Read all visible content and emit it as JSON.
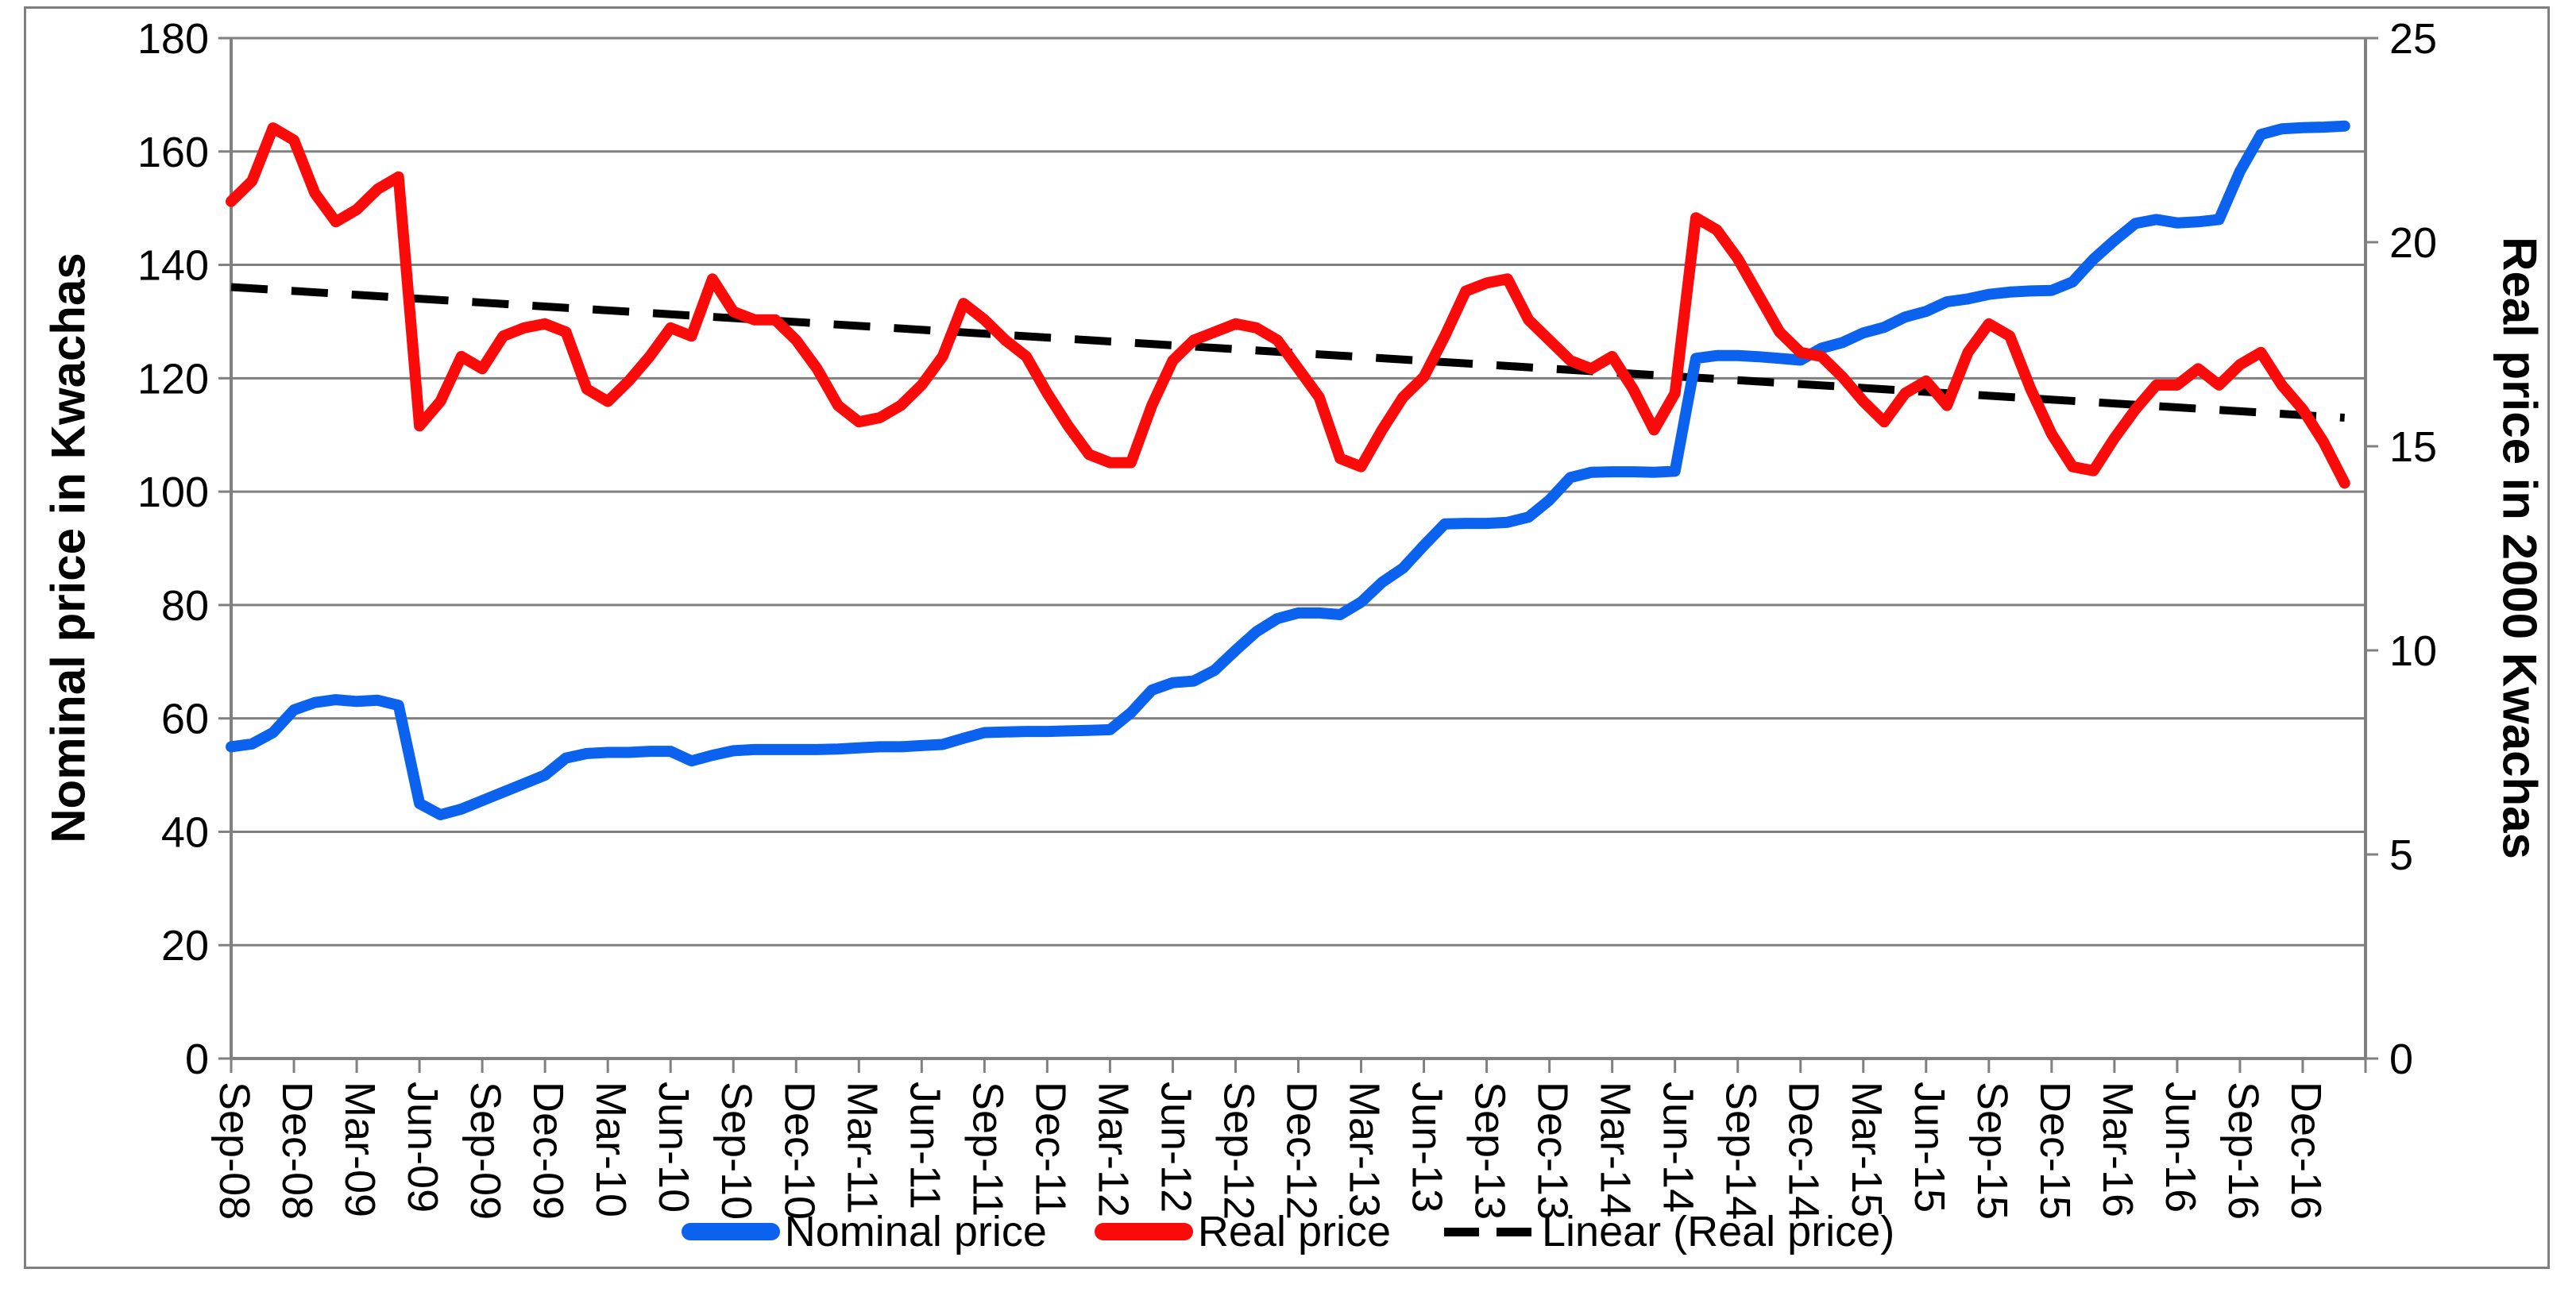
{
  "chart_data": {
    "type": "line",
    "title": "",
    "x_tick_labels": [
      "Sep-08",
      "Dec-08",
      "Mar-09",
      "Jun-09",
      "Sep-09",
      "Dec-09",
      "Mar-10",
      "Jun-10",
      "Sep-10",
      "Dec-10",
      "Mar-11",
      "Jun-11",
      "Sep-11",
      "Dec-11",
      "Mar-12",
      "Jun-12",
      "Sep-12",
      "Dec-12",
      "Mar-13",
      "Jun-13",
      "Sep-13",
      "Dec-13",
      "Mar-14",
      "Jun-14",
      "Sep-14",
      "Dec-14",
      "Mar-15",
      "Jun-15",
      "Sep-15",
      "Dec-15",
      "Mar-16",
      "Jun-16",
      "Sep-16",
      "Dec-16"
    ],
    "x": [
      "Sep-08",
      "Oct-08",
      "Nov-08",
      "Dec-08",
      "Jan-09",
      "Feb-09",
      "Mar-09",
      "Apr-09",
      "May-09",
      "Jun-09",
      "Jul-09",
      "Aug-09",
      "Sep-09",
      "Oct-09",
      "Nov-09",
      "Dec-09",
      "Jan-10",
      "Feb-10",
      "Mar-10",
      "Apr-10",
      "May-10",
      "Jun-10",
      "Jul-10",
      "Aug-10",
      "Sep-10",
      "Oct-10",
      "Nov-10",
      "Dec-10",
      "Jan-11",
      "Feb-11",
      "Mar-11",
      "Apr-11",
      "May-11",
      "Jun-11",
      "Jul-11",
      "Aug-11",
      "Sep-11",
      "Oct-11",
      "Nov-11",
      "Dec-11",
      "Jan-12",
      "Feb-12",
      "Mar-12",
      "Apr-12",
      "May-12",
      "Jun-12",
      "Jul-12",
      "Aug-12",
      "Sep-12",
      "Oct-12",
      "Nov-12",
      "Dec-12",
      "Jan-13",
      "Feb-13",
      "Mar-13",
      "Apr-13",
      "May-13",
      "Jun-13",
      "Jul-13",
      "Aug-13",
      "Sep-13",
      "Oct-13",
      "Nov-13",
      "Dec-13",
      "Jan-14",
      "Feb-14",
      "Mar-14",
      "Apr-14",
      "May-14",
      "Jun-14",
      "Jul-14",
      "Aug-14",
      "Sep-14",
      "Oct-14",
      "Nov-14",
      "Dec-14",
      "Jan-15",
      "Feb-15",
      "Mar-15",
      "Apr-15",
      "May-15",
      "Jun-15",
      "Jul-15",
      "Aug-15",
      "Sep-15",
      "Oct-15",
      "Nov-15",
      "Dec-15",
      "Jan-16",
      "Feb-16",
      "Mar-16",
      "Apr-16",
      "May-16",
      "Jun-16",
      "Jul-16",
      "Aug-16",
      "Sep-16",
      "Oct-16",
      "Nov-16",
      "Dec-16",
      "Jan-17",
      "Feb-17"
    ],
    "series": [
      {
        "name": "Nominal price",
        "axis": "left",
        "color": "#0a62ef",
        "values": [
          55,
          55.5,
          57.5,
          61.5,
          62.8,
          63.3,
          63,
          63.2,
          62.3,
          45,
          43,
          44,
          45.5,
          47,
          48.5,
          50,
          53,
          53.8,
          54,
          54,
          54.2,
          54.2,
          52.5,
          53.5,
          54.3,
          54.5,
          54.5,
          54.5,
          54.5,
          54.6,
          54.8,
          55,
          55,
          55.2,
          55.4,
          56.5,
          57.5,
          57.6,
          57.7,
          57.7,
          57.8,
          57.9,
          58,
          61,
          65,
          66.3,
          66.6,
          68.5,
          72,
          75.3,
          77.6,
          78.6,
          78.6,
          78.3,
          80.5,
          84,
          86.5,
          90.5,
          94.3,
          94.4,
          94.4,
          94.6,
          95.5,
          98.5,
          102.5,
          103.4,
          103.5,
          103.5,
          103.4,
          103.6,
          123.5,
          124,
          124,
          123.8,
          123.5,
          123.2,
          125.3,
          126.3,
          128,
          129,
          130.8,
          131.8,
          133.5,
          134,
          134.8,
          135.2,
          135.4,
          135.5,
          137,
          141,
          144.3,
          147.3,
          148,
          147.4,
          147.6,
          148,
          156.5,
          163,
          164,
          164.2,
          164.3,
          164.5
        ]
      },
      {
        "name": "Real price",
        "axis": "right",
        "color": "#fb0a0a",
        "values": [
          21,
          21.5,
          22.8,
          22.5,
          21.2,
          20.5,
          20.8,
          21.3,
          21.6,
          15.5,
          16.1,
          17.2,
          16.9,
          17.7,
          17.9,
          18,
          17.8,
          16.4,
          16.1,
          16.6,
          17.2,
          17.9,
          17.7,
          19.1,
          18.3,
          18.1,
          18.1,
          17.6,
          16.9,
          16,
          15.6,
          15.7,
          16,
          16.5,
          17.2,
          18.5,
          18.1,
          17.6,
          17.2,
          16.3,
          15.5,
          14.8,
          14.6,
          14.6,
          16,
          17.1,
          17.6,
          17.8,
          18,
          17.9,
          17.6,
          16.9,
          16.2,
          14.7,
          14.5,
          15.4,
          16.2,
          16.7,
          17.7,
          18.8,
          19,
          19.1,
          18.1,
          17.6,
          17.1,
          16.9,
          17.2,
          16.4,
          15.4,
          16.3,
          20.6,
          20.3,
          19.6,
          18.7,
          17.8,
          17.3,
          17.2,
          16.7,
          16.1,
          15.6,
          16.3,
          16.6,
          16,
          17.3,
          18,
          17.7,
          16.4,
          15.3,
          14.5,
          14.4,
          15.2,
          15.9,
          16.5,
          16.5,
          16.9,
          16.5,
          17,
          17.3,
          16.5,
          15.9,
          15.1,
          14.1
        ]
      }
    ],
    "trendline": {
      "name": "Linear (Real price)",
      "axis": "right",
      "color": "#000000",
      "style": "dashed",
      "start": 18.9,
      "end": 15.7
    },
    "left_axis": {
      "title": "Nominal price in Kwachas",
      "min": 0,
      "max": 180,
      "step": 20,
      "tick_labels": [
        "0",
        "20",
        "40",
        "60",
        "80",
        "100",
        "120",
        "140",
        "160",
        "180"
      ]
    },
    "right_axis": {
      "title": "Real price in 2000 Kwachas",
      "min": 0,
      "max": 25,
      "step": 5,
      "tick_labels": [
        "0",
        "5",
        "10",
        "15",
        "20",
        "25"
      ]
    },
    "legend": {
      "position": "bottom",
      "entries": [
        {
          "label": "Nominal price"
        },
        {
          "label": "Real price"
        },
        {
          "label": "Linear (Real price)"
        }
      ]
    },
    "grid": "horizontal-on",
    "colors": {
      "grid": "#808080",
      "axis": "#808080",
      "frame": "#7f7f7f",
      "background": "#ffffff",
      "text": "#000000"
    }
  }
}
